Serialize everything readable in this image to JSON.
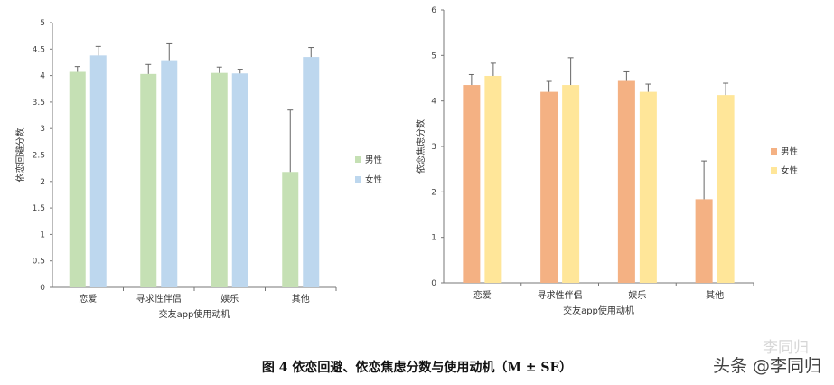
{
  "chart_data": [
    {
      "type": "bar",
      "categories": [
        "恋爱",
        "寻求性伴侣",
        "娱乐",
        "其他"
      ],
      "xlabel": "交友app使用动机",
      "ylabel": "依恋回避分数",
      "ylim": [
        0,
        5
      ],
      "yticks": [
        "0",
        "0.5",
        "1",
        "1.5",
        "2",
        "2.5",
        "3",
        "3.5",
        "4",
        "4.5",
        "5"
      ],
      "legend_position": "right",
      "grid": false,
      "series": [
        {
          "name": "男性",
          "color": "#c5e0b4",
          "values": [
            4.07,
            4.03,
            4.05,
            2.18
          ],
          "errors": [
            0.1,
            0.18,
            0.11,
            1.17
          ]
        },
        {
          "name": "女性",
          "color": "#bdd7ee",
          "values": [
            4.38,
            4.29,
            4.04,
            4.35
          ],
          "errors": [
            0.17,
            0.31,
            0.08,
            0.18
          ]
        }
      ]
    },
    {
      "type": "bar",
      "categories": [
        "恋爱",
        "寻求性伴侣",
        "娱乐",
        "其他"
      ],
      "xlabel": "交友app使用动机",
      "ylabel": "依恋焦虑分数",
      "ylim": [
        0,
        6
      ],
      "yticks": [
        "0",
        "1",
        "2",
        "3",
        "4",
        "5",
        "6"
      ],
      "legend_position": "right",
      "grid": false,
      "series": [
        {
          "name": "男性",
          "color": "#f4b183",
          "values": [
            4.35,
            4.2,
            4.44,
            1.84
          ],
          "errors": [
            0.23,
            0.23,
            0.2,
            0.84
          ]
        },
        {
          "name": "女性",
          "color": "#ffe699",
          "values": [
            4.55,
            4.35,
            4.2,
            4.13
          ],
          "errors": [
            0.28,
            0.6,
            0.17,
            0.26
          ]
        }
      ]
    }
  ],
  "caption": "图 4  依恋回避、依恋焦虑分数与使用动机（M ± SE）",
  "watermark": "头条 @李同归",
  "watermark_faint": "李同归"
}
